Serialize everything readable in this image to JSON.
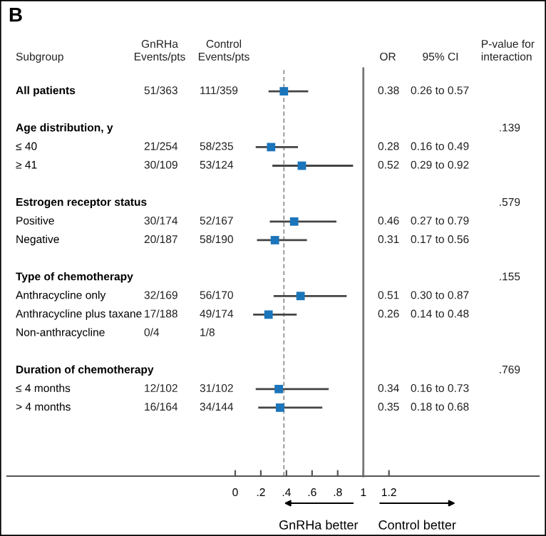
{
  "chart_data": {
    "type": "scatter",
    "title": "B",
    "ylabel": "Subgroup",
    "orientation": "horizontal",
    "marker": "square",
    "legend": false,
    "grid": false,
    "tick_labels": "x",
    "categories": [
      "All patients",
      null,
      "Age distribution, y",
      "≤ 40",
      "≥ 41",
      null,
      "Estrogen receptor status",
      "Positive",
      "Negative",
      null,
      "Type of chemotherapy",
      "Anthracycline only",
      "Anthracycline plus taxane",
      "Non-anthracycline",
      null,
      "Duration of chemotherapy",
      "≤ 4 months",
      "> 4 months"
    ],
    "xlim": [
      -1.78,
      2.37
    ],
    "xticks": [
      0,
      {
        "value": 0.2,
        "label": ".2"
      },
      {
        "value": 0.4,
        "label": ".4"
      },
      {
        "value": 0.6,
        "label": ".6"
      },
      {
        "value": 0.8,
        "label": ".8"
      },
      1,
      1.2
    ],
    "ref_lines": [
      {
        "axis": "x",
        "value": 0.38,
        "color": "#999999",
        "line_style": "dashed"
      },
      {
        "axis": "x",
        "value": 1,
        "color": "#777777",
        "line_style": "solid"
      }
    ],
    "annotations": [
      "GnRHa better",
      "Control better"
    ],
    "series": [
      {
        "name": "GnRHa\nEvents/pts",
        "type": "other",
        "values": [
          null,
          null,
          null,
          null,
          null,
          null,
          null,
          null,
          null,
          null,
          null,
          null,
          null,
          null,
          null,
          null,
          null,
          null
        ],
        "value_labels": [
          "51/363",
          null,
          null,
          "21/254",
          "30/109",
          null,
          null,
          "30/174",
          "20/187",
          null,
          null,
          "32/169",
          "17/188",
          "0/4",
          null,
          null,
          "12/102",
          "16/164"
        ]
      },
      {
        "name": "Control\nEvents/pts",
        "type": "other",
        "values": [
          null,
          null,
          null,
          null,
          null,
          null,
          null,
          null,
          null,
          null,
          null,
          null,
          null,
          null,
          null,
          null,
          null,
          null
        ],
        "value_labels": [
          "111/359",
          null,
          null,
          "58/235",
          "53/124",
          null,
          null,
          "52/167",
          "58/190",
          null,
          null,
          "56/170",
          "49/174",
          "1/8",
          null,
          null,
          "31/102",
          "34/144"
        ]
      },
      {
        "name": "OR",
        "type": "other",
        "values": [
          null,
          null,
          null,
          null,
          null,
          null,
          null,
          null,
          null,
          null,
          null,
          null,
          null,
          null,
          null,
          null,
          null,
          null
        ],
        "value_labels": [
          "0.38",
          null,
          null,
          "0.28",
          "0.52",
          null,
          null,
          "0.46",
          "0.31",
          null,
          null,
          "0.51",
          "0.26",
          null,
          null,
          null,
          "0.34",
          "0.35"
        ]
      },
      {
        "color": "#1b75bb",
        "values": [
          0.38,
          null,
          null,
          0.28,
          0.52,
          null,
          null,
          0.46,
          0.31,
          null,
          null,
          0.51,
          0.26,
          null,
          null,
          null,
          0.34,
          0.35
        ],
        "errors": [
          [
            0.26,
            0.57
          ],
          null,
          null,
          [
            0.16,
            0.49
          ],
          [
            0.29,
            0.92
          ],
          null,
          null,
          [
            0.27,
            0.79
          ],
          [
            0.17,
            0.56
          ],
          null,
          null,
          [
            0.3,
            0.87
          ],
          [
            0.14,
            0.48
          ],
          null,
          null,
          null,
          [
            0.16,
            0.73
          ],
          [
            0.18,
            0.68
          ]
        ]
      },
      {
        "name": "95% CI",
        "type": "other",
        "values": [
          null,
          null,
          null,
          null,
          null,
          null,
          null,
          null,
          null,
          null,
          null,
          null,
          null,
          null,
          null,
          null,
          null,
          null
        ],
        "value_labels": [
          "0.26 to 0.57",
          null,
          null,
          "0.16 to 0.49",
          "0.29 to 0.92",
          null,
          null,
          "0.27 to 0.79",
          "0.17 to 0.56",
          null,
          null,
          "0.30 to 0.87",
          "0.14 to 0.48",
          null,
          null,
          null,
          "0.16 to 0.73",
          "0.18 to 0.68"
        ]
      },
      {
        "name": "P-value for\ninteraction",
        "type": "other",
        "values": [
          null,
          null,
          null,
          null,
          null,
          null,
          null,
          null,
          null,
          null,
          null,
          null,
          null,
          null,
          null,
          null,
          null,
          null
        ],
        "value_labels": [
          null,
          null,
          ".139",
          null,
          null,
          null,
          ".579",
          null,
          null,
          null,
          ".155",
          null,
          null,
          null,
          null,
          ".769",
          null,
          null
        ]
      }
    ]
  }
}
